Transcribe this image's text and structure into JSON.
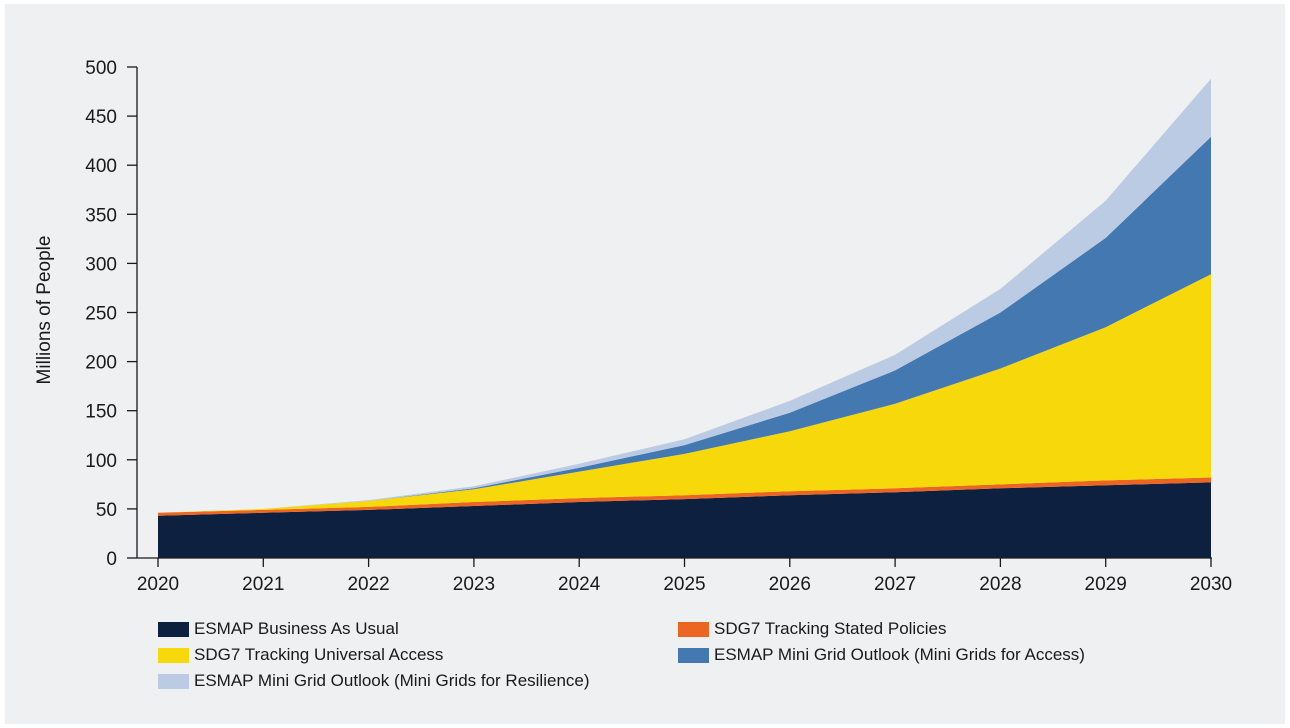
{
  "chart_data": {
    "type": "area",
    "stacked": true,
    "ylabel": "Millions of People",
    "xlabel": "",
    "ylim": [
      0,
      500
    ],
    "yticks": [
      0,
      50,
      100,
      150,
      200,
      250,
      300,
      350,
      400,
      450,
      500
    ],
    "x": [
      "2020",
      "2021",
      "2022",
      "2023",
      "2024",
      "2025",
      "2026",
      "2027",
      "2028",
      "2029",
      "2030"
    ],
    "grid": false,
    "legend_position": "bottom",
    "series": [
      {
        "name": "ESMAP Business As Usual",
        "color": "#0d2040",
        "values": [
          43,
          46,
          49,
          53,
          57,
          60,
          64,
          67,
          71,
          74,
          77
        ]
      },
      {
        "name": "SDG7 Tracking Stated Policies",
        "color": "#ec6522",
        "values": [
          3,
          3,
          3,
          4,
          4,
          4,
          4,
          4,
          4,
          5,
          5
        ]
      },
      {
        "name": "SDG7 Tracking Universal Access",
        "color": "#f6d80b",
        "values": [
          0,
          1,
          6,
          13,
          27,
          42,
          61,
          86,
          118,
          156,
          207
        ]
      },
      {
        "name": "ESMAP Mini Grid Outlook (Mini Grids for Access)",
        "color": "#4478b1",
        "values": [
          0,
          0,
          0,
          1,
          4,
          9,
          19,
          34,
          57,
          91,
          140
        ]
      },
      {
        "name": "ESMAP Mini Grid Outlook (Mini Grids for Resilience)",
        "color": "#bccbe4",
        "values": [
          0,
          0,
          1,
          2,
          4,
          6,
          12,
          16,
          24,
          38,
          59
        ]
      }
    ]
  }
}
